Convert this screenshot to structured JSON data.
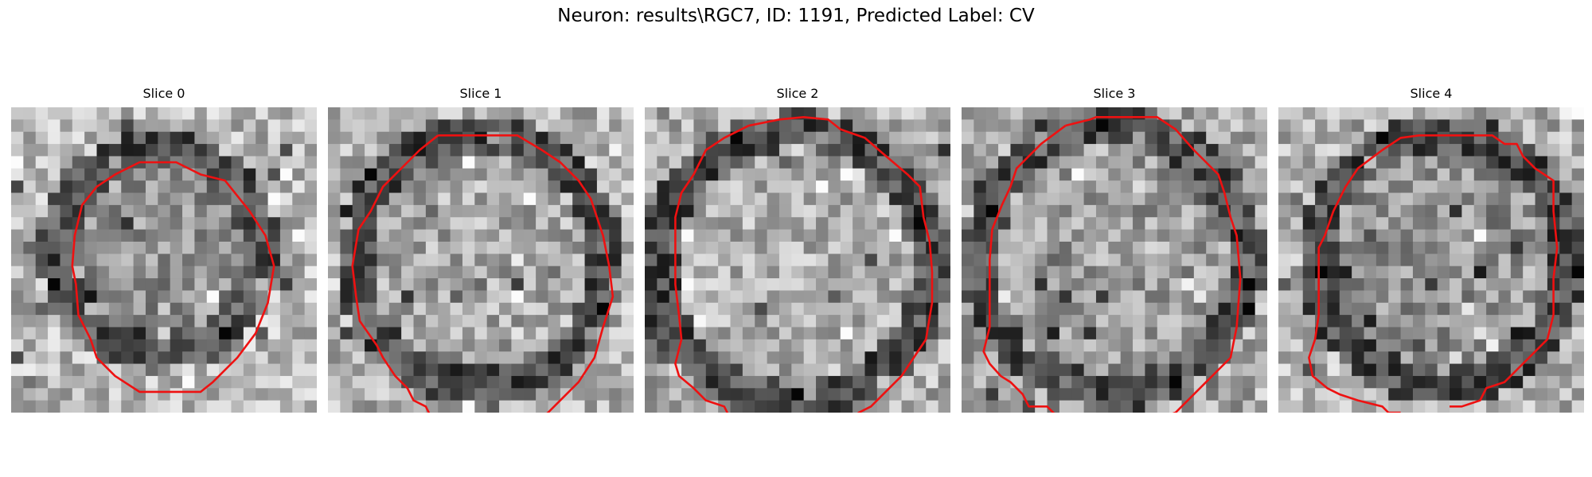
{
  "figure": {
    "title": "Neuron: results\\RGC7, ID: 1191, Predicted Label: CV"
  },
  "contour_color": "#ee1111",
  "grid_size": 25,
  "panels": [
    {
      "title": "Slice 0",
      "seed": 11,
      "center": [
        12.0,
        11.8
      ],
      "radius": 8.4,
      "interior_base": 0.58,
      "rim_base": 0.32,
      "outside_base": 0.72,
      "contour": [
        [
          10.5,
          4.5
        ],
        [
          13.5,
          4.5
        ],
        [
          15.5,
          5.5
        ],
        [
          17.5,
          6.0
        ],
        [
          19.5,
          8.5
        ],
        [
          20.8,
          10.5
        ],
        [
          21.5,
          13.0
        ],
        [
          21.0,
          16.0
        ],
        [
          20.0,
          18.5
        ],
        [
          18.5,
          20.5
        ],
        [
          16.5,
          22.5
        ],
        [
          15.5,
          23.3
        ],
        [
          10.5,
          23.3
        ],
        [
          8.5,
          22.0
        ],
        [
          7.0,
          20.5
        ],
        [
          6.5,
          19.0
        ],
        [
          5.5,
          17.0
        ],
        [
          5.3,
          14.5
        ],
        [
          5.0,
          13.0
        ],
        [
          5.2,
          10.5
        ],
        [
          5.8,
          8.0
        ],
        [
          7.0,
          6.5
        ],
        [
          8.5,
          5.5
        ]
      ]
    },
    {
      "title": "Slice 1",
      "seed": 23,
      "center": [
        12.3,
        12.5
      ],
      "radius": 10.4,
      "interior_base": 0.66,
      "rim_base": 0.3,
      "outside_base": 0.7,
      "contour": [
        [
          9.0,
          2.3
        ],
        [
          15.5,
          2.3
        ],
        [
          17.5,
          3.5
        ],
        [
          19.0,
          4.5
        ],
        [
          20.5,
          6.0
        ],
        [
          21.5,
          7.5
        ],
        [
          22.5,
          10.5
        ],
        [
          23.0,
          13.0
        ],
        [
          23.3,
          15.5
        ],
        [
          22.5,
          18.0
        ],
        [
          21.8,
          20.5
        ],
        [
          20.5,
          22.5
        ],
        [
          19.5,
          23.5
        ],
        [
          18.0,
          25.0
        ],
        [
          16.8,
          26.0
        ],
        [
          16.8,
          25.0
        ]
      ],
      "contour2": [
        [
          9.0,
          2.3
        ],
        [
          7.5,
          3.5
        ],
        [
          6.0,
          5.0
        ],
        [
          4.5,
          6.5
        ],
        [
          3.5,
          8.5
        ],
        [
          2.5,
          10.0
        ],
        [
          2.0,
          13.0
        ],
        [
          2.3,
          15.5
        ],
        [
          2.6,
          17.5
        ],
        [
          4.0,
          19.5
        ],
        [
          4.5,
          20.5
        ],
        [
          5.5,
          22.0
        ],
        [
          6.5,
          23.0
        ],
        [
          7.0,
          24.0
        ],
        [
          8.0,
          24.5
        ],
        [
          8.5,
          25.5
        ]
      ]
    },
    {
      "title": "Slice 2",
      "seed": 37,
      "center": [
        12.2,
        13.0
      ],
      "radius": 11.2,
      "interior_base": 0.68,
      "rim_base": 0.3,
      "outside_base": 0.68,
      "contour": [
        [
          8.5,
          1.5
        ],
        [
          11.0,
          1.0
        ],
        [
          13.0,
          0.8
        ],
        [
          15.0,
          1.0
        ],
        [
          16.0,
          1.8
        ],
        [
          18.0,
          2.5
        ],
        [
          19.5,
          3.8
        ],
        [
          21.5,
          5.5
        ],
        [
          22.5,
          6.5
        ],
        [
          22.8,
          9.0
        ],
        [
          23.3,
          11.0
        ],
        [
          23.5,
          13.5
        ],
        [
          23.5,
          16.0
        ],
        [
          23.0,
          19.0
        ],
        [
          22.0,
          20.5
        ],
        [
          21.0,
          22.0
        ],
        [
          19.5,
          23.5
        ],
        [
          18.5,
          24.5
        ],
        [
          17.5,
          25.0
        ],
        [
          17.0,
          25.5
        ]
      ],
      "contour2": [
        [
          8.5,
          1.5
        ],
        [
          6.5,
          2.5
        ],
        [
          5.0,
          3.5
        ],
        [
          4.0,
          5.5
        ],
        [
          3.0,
          7.0
        ],
        [
          2.5,
          9.0
        ],
        [
          2.5,
          12.0
        ],
        [
          2.5,
          14.5
        ],
        [
          2.8,
          17.0
        ],
        [
          3.0,
          19.0
        ],
        [
          2.5,
          21.0
        ],
        [
          2.8,
          22.0
        ],
        [
          4.0,
          23.0
        ],
        [
          5.0,
          24.0
        ],
        [
          6.5,
          24.5
        ],
        [
          7.0,
          25.5
        ]
      ]
    },
    {
      "title": "Slice 3",
      "seed": 51,
      "center": [
        12.3,
        12.4
      ],
      "radius": 11.0,
      "interior_base": 0.62,
      "rim_base": 0.32,
      "outside_base": 0.66,
      "contour": [
        [
          8.5,
          1.5
        ],
        [
          10.5,
          1.0
        ],
        [
          11.0,
          0.8
        ],
        [
          16.0,
          0.8
        ],
        [
          17.5,
          1.8
        ],
        [
          19.0,
          3.5
        ],
        [
          21.0,
          5.5
        ],
        [
          21.5,
          7.0
        ],
        [
          22.0,
          9.0
        ],
        [
          22.5,
          10.5
        ],
        [
          22.8,
          14.0
        ],
        [
          22.5,
          18.0
        ],
        [
          22.0,
          20.5
        ],
        [
          20.0,
          22.5
        ],
        [
          17.5,
          25.0
        ],
        [
          16.0,
          25.5
        ]
      ],
      "contour2": [
        [
          8.5,
          1.5
        ],
        [
          6.5,
          3.0
        ],
        [
          4.5,
          5.0
        ],
        [
          4.0,
          6.5
        ],
        [
          3.3,
          8.0
        ],
        [
          2.5,
          10.0
        ],
        [
          2.3,
          12.5
        ],
        [
          2.3,
          16.0
        ],
        [
          2.3,
          18.0
        ],
        [
          1.8,
          20.0
        ],
        [
          2.3,
          21.0
        ],
        [
          3.2,
          22.0
        ],
        [
          4.0,
          22.5
        ],
        [
          5.0,
          23.5
        ],
        [
          5.5,
          24.5
        ],
        [
          7.0,
          24.5
        ],
        [
          8.0,
          25.5
        ]
      ]
    },
    {
      "title": "Slice 4",
      "seed": 67,
      "center": [
        13.3,
        12.5
      ],
      "radius": 10.4,
      "interior_base": 0.58,
      "rim_base": 0.3,
      "outside_base": 0.7,
      "contour": [
        [
          8.5,
          3.5
        ],
        [
          10.0,
          2.5
        ],
        [
          11.5,
          2.3
        ],
        [
          17.5,
          2.3
        ],
        [
          18.5,
          3.0
        ],
        [
          19.5,
          3.0
        ],
        [
          20.0,
          4.0
        ],
        [
          21.0,
          5.0
        ],
        [
          22.5,
          6.0
        ],
        [
          22.5,
          8.5
        ],
        [
          22.8,
          11.5
        ],
        [
          22.5,
          14.0
        ],
        [
          22.5,
          17.0
        ],
        [
          22.0,
          19.0
        ],
        [
          20.5,
          20.5
        ],
        [
          19.5,
          21.5
        ],
        [
          18.5,
          22.5
        ],
        [
          17.0,
          23.0
        ],
        [
          16.5,
          24.0
        ],
        [
          15.0,
          24.5
        ],
        [
          14.0,
          24.5
        ]
      ],
      "contour2": [
        [
          8.5,
          3.5
        ],
        [
          6.5,
          5.0
        ],
        [
          5.5,
          6.5
        ],
        [
          4.5,
          8.5
        ],
        [
          3.8,
          10.5
        ],
        [
          3.3,
          11.5
        ],
        [
          3.3,
          14.5
        ],
        [
          3.3,
          17.0
        ],
        [
          3.0,
          19.0
        ],
        [
          2.5,
          20.5
        ],
        [
          2.8,
          22.0
        ],
        [
          4.0,
          23.0
        ],
        [
          5.0,
          23.5
        ],
        [
          6.5,
          24.0
        ],
        [
          8.5,
          24.5
        ],
        [
          9.0,
          25.0
        ],
        [
          10.0,
          25.0
        ]
      ]
    }
  ]
}
